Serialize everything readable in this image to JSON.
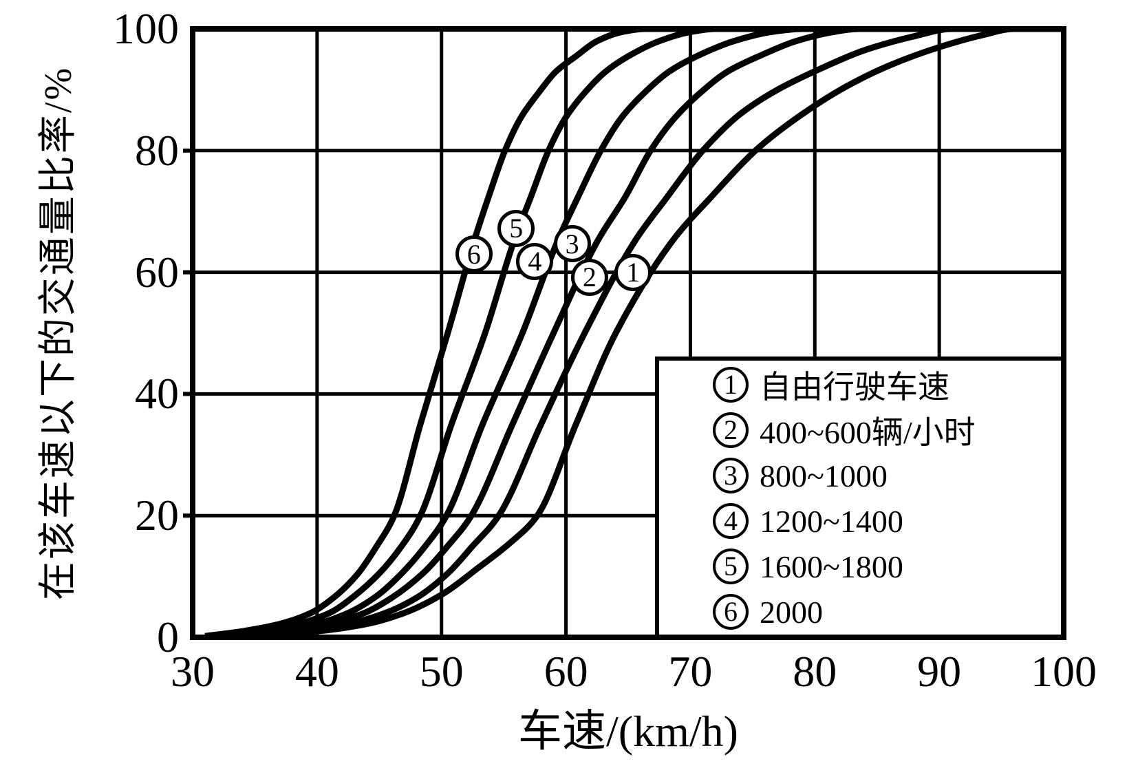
{
  "figure": {
    "background": "#ffffff",
    "ink": "#000000",
    "kind": "scanned cumulative speed distribution chart"
  },
  "chart_data": {
    "type": "line",
    "title": "",
    "xlabel": "车速/(km/h)",
    "ylabel": "在该车速以下的交通量比率/%",
    "xlim": [
      30,
      100
    ],
    "ylim": [
      0,
      100
    ],
    "x_ticks": [
      "30",
      "40",
      "50",
      "60",
      "70",
      "80",
      "90",
      "100"
    ],
    "x_tick_values": [
      30,
      40,
      50,
      60,
      70,
      80,
      90,
      100
    ],
    "y_ticks": [
      "0",
      "20",
      "40",
      "60",
      "80",
      "100"
    ],
    "y_tick_values": [
      0,
      20,
      40,
      60,
      80,
      100
    ],
    "grid": {
      "vertical_at": [
        40,
        50,
        60,
        70,
        80,
        90
      ],
      "horizontal_at": [
        20,
        40,
        60,
        80
      ]
    },
    "legend": {
      "position": "bottom-right",
      "items": [
        {
          "marker": "1",
          "label": "自由行驶车速"
        },
        {
          "marker": "2",
          "label": "400~600辆/小时"
        },
        {
          "marker": "3",
          "label": "800~1000"
        },
        {
          "marker": "4",
          "label": "1200~1400"
        },
        {
          "marker": "5",
          "label": "1600~1800"
        },
        {
          "marker": "6",
          "label": "2000"
        }
      ]
    },
    "annotations": [
      {
        "marker": "6",
        "x": 52.6,
        "y": 63
      },
      {
        "marker": "5",
        "x": 56.0,
        "y": 67.2
      },
      {
        "marker": "4",
        "x": 57.5,
        "y": 61.8
      },
      {
        "marker": "3",
        "x": 60.5,
        "y": 64.7
      },
      {
        "marker": "2",
        "x": 61.9,
        "y": 59.2
      },
      {
        "marker": "1",
        "x": 65.4,
        "y": 60.0
      }
    ],
    "series": [
      {
        "id": "1",
        "label": "自由行驶车速",
        "points": [
          [
            34,
            0.2
          ],
          [
            40,
            1
          ],
          [
            44,
            2.2
          ],
          [
            47,
            4
          ],
          [
            50,
            7
          ],
          [
            53,
            11.5
          ],
          [
            55.5,
            15.5
          ],
          [
            57.7,
            20
          ],
          [
            60.8,
            35
          ],
          [
            64,
            50
          ],
          [
            68.5,
            65
          ],
          [
            71.5,
            72
          ],
          [
            75.5,
            80.5
          ],
          [
            79,
            86
          ],
          [
            82.5,
            90.5
          ],
          [
            86,
            94
          ],
          [
            90,
            97
          ],
          [
            93.5,
            99
          ],
          [
            96,
            100
          ],
          [
            100,
            100
          ]
        ]
      },
      {
        "id": "2",
        "label": "400~600辆/小时",
        "points": [
          [
            33,
            0.2
          ],
          [
            39,
            1
          ],
          [
            42.5,
            2.2
          ],
          [
            45.5,
            4
          ],
          [
            48,
            6.5
          ],
          [
            50.5,
            10.5
          ],
          [
            52.5,
            15
          ],
          [
            54.6,
            20
          ],
          [
            58,
            35
          ],
          [
            61.5,
            50
          ],
          [
            65.5,
            65
          ],
          [
            68,
            72
          ],
          [
            71,
            80
          ],
          [
            74,
            86
          ],
          [
            77,
            90
          ],
          [
            80.5,
            93.5
          ],
          [
            84,
            96.5
          ],
          [
            88,
            98.8
          ],
          [
            91,
            100
          ],
          [
            100,
            100
          ]
        ]
      },
      {
        "id": "3",
        "label": "800~1000",
        "points": [
          [
            32.5,
            0.2
          ],
          [
            38,
            1
          ],
          [
            41,
            2.2
          ],
          [
            43.8,
            4
          ],
          [
            46,
            6.5
          ],
          [
            48.5,
            10.5
          ],
          [
            50.5,
            15
          ],
          [
            52.4,
            20
          ],
          [
            55.7,
            35
          ],
          [
            59,
            50
          ],
          [
            62.5,
            65
          ],
          [
            64.8,
            72.5
          ],
          [
            66.8,
            80
          ],
          [
            68.8,
            85.5
          ],
          [
            70.8,
            89.5
          ],
          [
            73,
            93
          ],
          [
            75.5,
            95.5
          ],
          [
            78.5,
            98
          ],
          [
            81.5,
            99.5
          ],
          [
            83.5,
            100
          ],
          [
            100,
            100
          ]
        ]
      },
      {
        "id": "4",
        "label": "1200~1400",
        "points": [
          [
            32,
            0.2
          ],
          [
            37,
            1
          ],
          [
            40,
            2.2
          ],
          [
            42.5,
            4
          ],
          [
            44.8,
            6.8
          ],
          [
            46.8,
            10.5
          ],
          [
            48.7,
            15
          ],
          [
            50.4,
            20
          ],
          [
            53.3,
            35
          ],
          [
            56.5,
            50
          ],
          [
            59.3,
            65
          ],
          [
            61,
            72.5
          ],
          [
            62.8,
            80
          ],
          [
            64.5,
            85.5
          ],
          [
            66.3,
            89.5
          ],
          [
            68.3,
            93
          ],
          [
            70.5,
            95.5
          ],
          [
            73.5,
            98
          ],
          [
            76.5,
            99.5
          ],
          [
            79,
            100
          ],
          [
            100,
            100
          ]
        ]
      },
      {
        "id": "5",
        "label": "1600~1800",
        "points": [
          [
            31.5,
            0.2
          ],
          [
            35.5,
            1
          ],
          [
            38.5,
            2.2
          ],
          [
            41,
            4
          ],
          [
            43,
            6.8
          ],
          [
            45,
            10.5
          ],
          [
            46.8,
            15
          ],
          [
            48.3,
            20
          ],
          [
            50.8,
            35
          ],
          [
            53.5,
            50
          ],
          [
            55.8,
            65
          ],
          [
            57.2,
            72.5
          ],
          [
            58.6,
            80
          ],
          [
            60,
            85.5
          ],
          [
            61.5,
            89.5
          ],
          [
            63.2,
            93
          ],
          [
            65,
            95.5
          ],
          [
            67.5,
            98
          ],
          [
            70,
            99.5
          ],
          [
            72,
            100
          ],
          [
            100,
            100
          ]
        ]
      },
      {
        "id": "6",
        "label": "2000",
        "points": [
          [
            31,
            0.2
          ],
          [
            34,
            1
          ],
          [
            37,
            2.2
          ],
          [
            39.5,
            4
          ],
          [
            41.5,
            6.8
          ],
          [
            43.3,
            10.5
          ],
          [
            44.8,
            15
          ],
          [
            46.2,
            20
          ],
          [
            48.3,
            35
          ],
          [
            50.5,
            50
          ],
          [
            52.6,
            65
          ],
          [
            53.8,
            72.5
          ],
          [
            55.1,
            80
          ],
          [
            56.4,
            85.5
          ],
          [
            57.8,
            89.5
          ],
          [
            59.2,
            93
          ],
          [
            60.8,
            95.5
          ],
          [
            62.5,
            98
          ],
          [
            64.5,
            99.5
          ],
          [
            66.3,
            100
          ],
          [
            100,
            100
          ]
        ]
      }
    ]
  }
}
